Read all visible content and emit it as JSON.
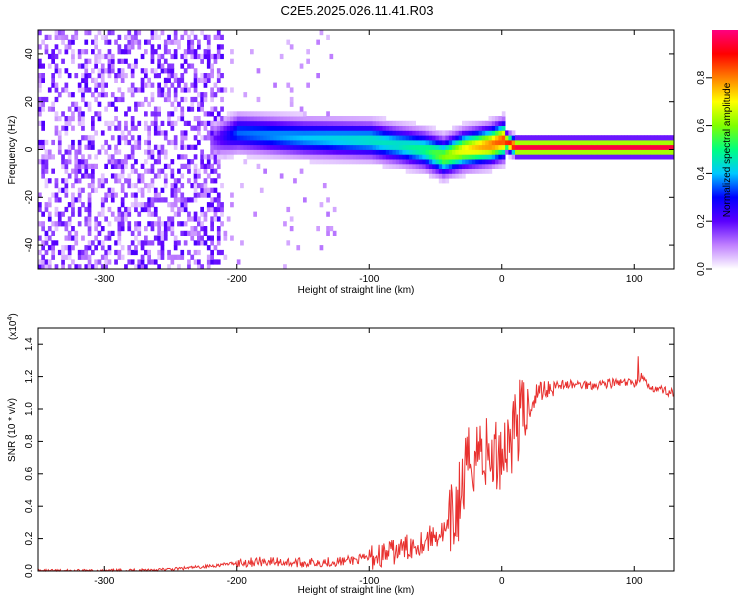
{
  "title": "C2E5.2025.026.11.41.R03",
  "chart_data": [
    {
      "type": "heatmap",
      "xlabel": "Height of straight line (km)",
      "ylabel": "Frequency (Hz)",
      "xlim": [
        -350,
        130
      ],
      "ylim": [
        -50,
        50
      ],
      "xticks": [
        -300,
        -200,
        -100,
        0,
        100
      ],
      "yticks": [
        -40,
        -20,
        0,
        20,
        40
      ],
      "colorbar": {
        "label": "Normalized spectral amplitude",
        "range": [
          0,
          1
        ],
        "ticks": [
          0.0,
          0.2,
          0.4,
          0.6,
          0.8
        ],
        "colors": [
          "#ffffff",
          "#c080ff",
          "#5a00ff",
          "#0000ff",
          "#00c8ff",
          "#00ff80",
          "#80ff00",
          "#ffff00",
          "#ff8000",
          "#ff0000",
          "#ff0080"
        ]
      },
      "ridge": {
        "description_points_x": [
          -220,
          -200,
          -150,
          -100,
          -80,
          -60,
          -45,
          -30,
          -20,
          -10,
          0,
          10,
          50,
          100,
          130
        ],
        "frequency_hz": [
          3,
          6,
          4,
          3,
          1,
          -1,
          -4,
          -1,
          0,
          1,
          3,
          0,
          0,
          0,
          0
        ],
        "peak_amplitude": [
          0.15,
          0.35,
          0.4,
          0.45,
          0.45,
          0.5,
          0.6,
          0.7,
          0.75,
          0.8,
          0.85,
          0.95,
          0.95,
          0.95,
          0.95
        ]
      }
    },
    {
      "type": "line",
      "xlabel": "Height of straight line (km)",
      "ylabel": "SNR (10 * v/v)",
      "yunit": "(x10",
      "yunit_exp": "4",
      "yunit_close": ")",
      "xlim": [
        -350,
        130
      ],
      "ylim": [
        0,
        1.5
      ],
      "xticks": [
        -300,
        -200,
        -100,
        0,
        100
      ],
      "yticks": [
        0.0,
        0.2,
        0.4,
        0.6,
        0.8,
        1.0,
        1.2,
        1.4
      ],
      "series": [
        {
          "color": "#e8312f",
          "x": [
            -350,
            -300,
            -250,
            -220,
            -200,
            -180,
            -150,
            -120,
            -100,
            -80,
            -60,
            -50,
            -40,
            -35,
            -30,
            -25,
            -20,
            -15,
            -10,
            -5,
            0,
            5,
            10,
            15,
            20,
            25,
            30,
            40,
            50,
            60,
            70,
            80,
            90,
            100,
            105,
            110,
            120,
            130
          ],
          "y": [
            0.0,
            0.0,
            0.01,
            0.03,
            0.05,
            0.06,
            0.05,
            0.06,
            0.08,
            0.12,
            0.18,
            0.22,
            0.25,
            0.35,
            0.5,
            0.65,
            0.75,
            0.75,
            0.7,
            0.7,
            0.75,
            0.8,
            0.9,
            0.95,
            1.0,
            1.08,
            1.12,
            1.15,
            1.15,
            1.15,
            1.15,
            1.16,
            1.16,
            1.16,
            1.2,
            1.15,
            1.12,
            1.1
          ]
        }
      ]
    }
  ]
}
